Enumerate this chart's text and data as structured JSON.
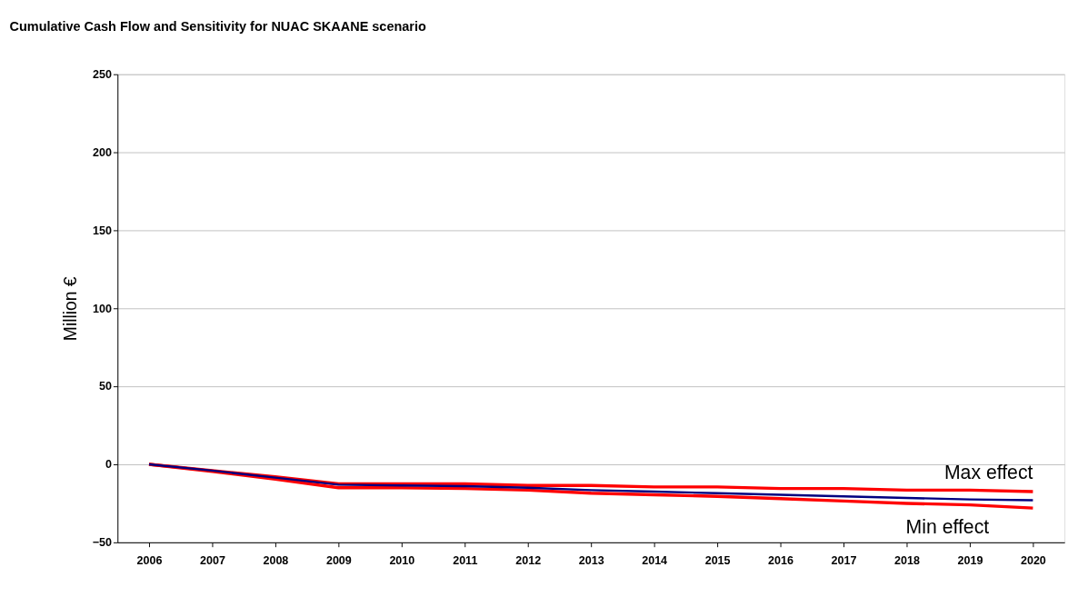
{
  "chart_data": {
    "type": "line",
    "title": "Cumulative Cash Flow and Sensitivity for NUAC SKAANE scenario",
    "ylabel": "Million €",
    "categories": [
      "2006",
      "2007",
      "2008",
      "2009",
      "2010",
      "2011",
      "2012",
      "2013",
      "2014",
      "2015",
      "2016",
      "2017",
      "2018",
      "2019",
      "2020"
    ],
    "series": [
      {
        "color": "#000080",
        "values": [
          0,
          -4,
          -8.5,
          -13,
          -13.5,
          -14,
          -15,
          -16.5,
          -17.5,
          -18.5,
          -19.5,
          -20.5,
          -21.5,
          -22.5,
          -23
        ]
      },
      {
        "name": "Max effect",
        "color": "#ff0000",
        "values": [
          0,
          -4,
          -8,
          -12.5,
          -12.5,
          -12.5,
          -13.5,
          -13.5,
          -14.5,
          -14.5,
          -15.5,
          -15.5,
          -16.5,
          -16.5,
          -17.5
        ]
      },
      {
        "name": "Min effect",
        "color": "#ff0000",
        "values": [
          0,
          -4.5,
          -9.5,
          -15,
          -15,
          -15.5,
          -16.5,
          -18.5,
          -19.5,
          -20.5,
          -22,
          -23.5,
          -25,
          -26,
          -28
        ]
      }
    ],
    "ylim": [
      -50,
      250
    ],
    "yticks": [
      -50,
      0,
      50,
      100,
      150,
      200,
      250
    ],
    "grid": "y",
    "marker": "none",
    "line_style": "solid"
  }
}
